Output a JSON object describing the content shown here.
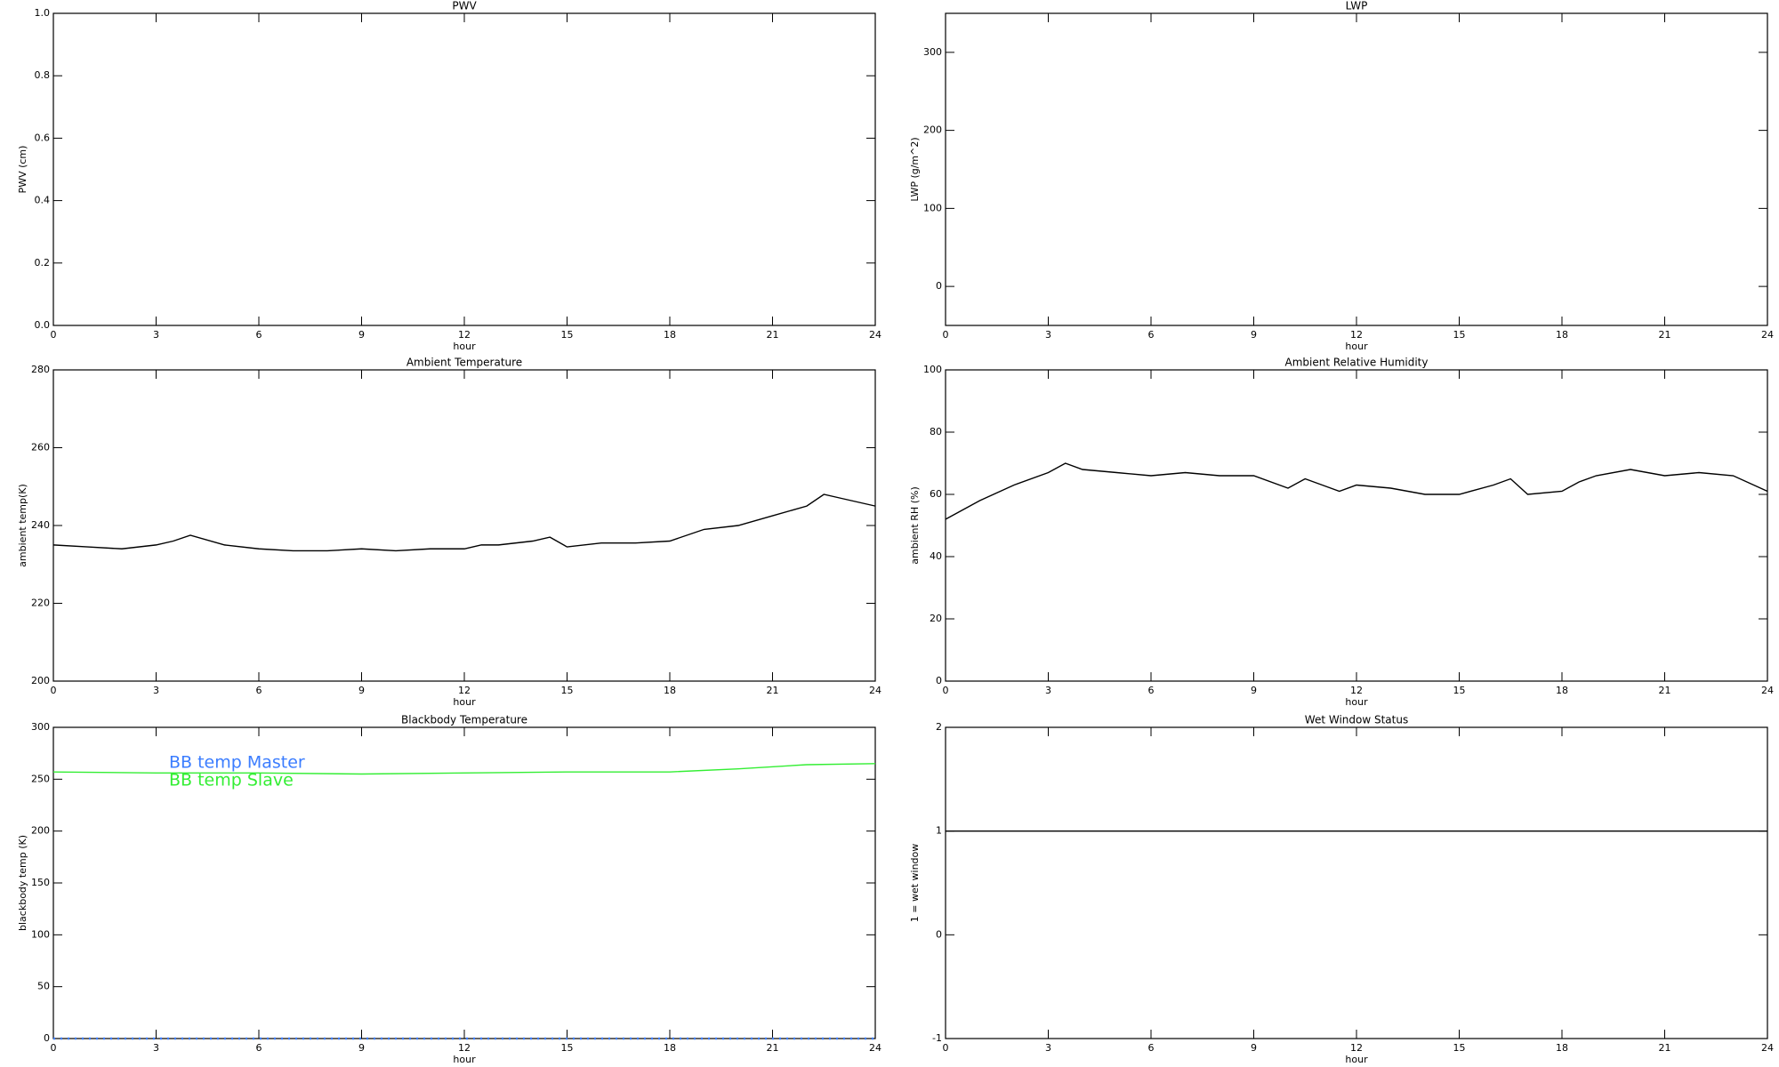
{
  "chart_data": [
    {
      "type": "line",
      "title": "PWV",
      "xlabel": "hour",
      "ylabel": "PWV (cm)",
      "xlim": [
        0,
        24
      ],
      "xticks": [
        0,
        3,
        6,
        9,
        12,
        15,
        18,
        21,
        24
      ],
      "ylim": [
        0,
        1
      ],
      "yticks": [
        {
          "value": 0,
          "label": "0.0"
        },
        {
          "value": 0.2,
          "label": "0.2"
        },
        {
          "value": 0.4,
          "label": "0.4"
        },
        {
          "value": 0.6,
          "label": "0.6"
        },
        {
          "value": 0.8,
          "label": "0.8"
        },
        {
          "value": 1,
          "label": "1.0"
        }
      ],
      "series": []
    },
    {
      "type": "line",
      "title": "LWP",
      "xlabel": "hour",
      "ylabel": "LWP (g/m^2)",
      "xlim": [
        0,
        24
      ],
      "xticks": [
        0,
        3,
        6,
        9,
        12,
        15,
        18,
        21,
        24
      ],
      "ylim": [
        -50,
        350
      ],
      "yticks": [
        0,
        100,
        200,
        300
      ],
      "series": []
    },
    {
      "type": "line",
      "title": "Ambient Temperature",
      "xlabel": "hour",
      "ylabel": "ambient temp(K)",
      "xlim": [
        0,
        24
      ],
      "xticks": [
        0,
        3,
        6,
        9,
        12,
        15,
        18,
        21,
        24
      ],
      "ylim": [
        200,
        280
      ],
      "yticks": [
        200,
        220,
        240,
        260,
        280
      ],
      "x": [
        0,
        1,
        2,
        3,
        3.5,
        4,
        5,
        6,
        7,
        8,
        9,
        10,
        11,
        12,
        12.5,
        13,
        14,
        14.5,
        15,
        16,
        17,
        18,
        19,
        20,
        21,
        22,
        22.5,
        23,
        24
      ],
      "series": [
        {
          "color": "#000000",
          "values": [
            235,
            234.5,
            234,
            235,
            236,
            237.5,
            235,
            234,
            233.5,
            233.5,
            234,
            233.5,
            234,
            234,
            235,
            235,
            236,
            237,
            234.5,
            235.5,
            235.5,
            236,
            239,
            240,
            242.5,
            245,
            248,
            247,
            245
          ]
        }
      ]
    },
    {
      "type": "line",
      "title": "Ambient Relative Humidity",
      "xlabel": "hour",
      "ylabel": "ambient RH (%)",
      "xlim": [
        0,
        24
      ],
      "xticks": [
        0,
        3,
        6,
        9,
        12,
        15,
        18,
        21,
        24
      ],
      "ylim": [
        0,
        100
      ],
      "yticks": [
        0,
        20,
        40,
        60,
        80,
        100
      ],
      "x": [
        0,
        0.5,
        1,
        2,
        3,
        3.5,
        4,
        5,
        6,
        7,
        8,
        9,
        10,
        10.5,
        11,
        11.5,
        12,
        13,
        14,
        15,
        16,
        16.5,
        17,
        18,
        18.5,
        19,
        20,
        21,
        22,
        23,
        24
      ],
      "series": [
        {
          "color": "#000000",
          "values": [
            52,
            55,
            58,
            63,
            67,
            70,
            68,
            67,
            66,
            67,
            66,
            66,
            62,
            65,
            63,
            61,
            63,
            62,
            60,
            60,
            63,
            65,
            60,
            61,
            64,
            66,
            68,
            66,
            67,
            66,
            61
          ]
        }
      ]
    },
    {
      "type": "line",
      "title": "Blackbody Temperature",
      "xlabel": "hour",
      "ylabel": "blackbody temp (K)",
      "xlim": [
        0,
        24
      ],
      "xticks": [
        0,
        3,
        6,
        9,
        12,
        15,
        18,
        21,
        24
      ],
      "ylim": [
        0,
        300
      ],
      "yticks": [
        0,
        50,
        100,
        150,
        200,
        250,
        300
      ],
      "legend_loc": "upper left",
      "x": [
        0,
        3,
        6,
        9,
        12,
        15,
        18,
        20,
        22,
        24
      ],
      "series": [
        {
          "name": "BB temp Master",
          "color": "#3b7dff",
          "values": [
            0,
            0,
            0,
            0,
            0,
            0,
            0,
            0,
            0,
            0
          ]
        },
        {
          "name": "BB temp Slave",
          "color": "#33ee33",
          "values": [
            257,
            256,
            256,
            255,
            256,
            257,
            257,
            260,
            264,
            265
          ]
        }
      ]
    },
    {
      "type": "line",
      "title": "Wet Window Status",
      "xlabel": "hour",
      "ylabel": "1 = wet window",
      "xlim": [
        0,
        24
      ],
      "xticks": [
        0,
        3,
        6,
        9,
        12,
        15,
        18,
        21,
        24
      ],
      "ylim": [
        -1,
        2
      ],
      "yticks": [
        -1,
        0,
        1,
        2
      ],
      "x": [
        0,
        24
      ],
      "series": [
        {
          "color": "#000000",
          "values": [
            1,
            1
          ]
        }
      ]
    }
  ]
}
